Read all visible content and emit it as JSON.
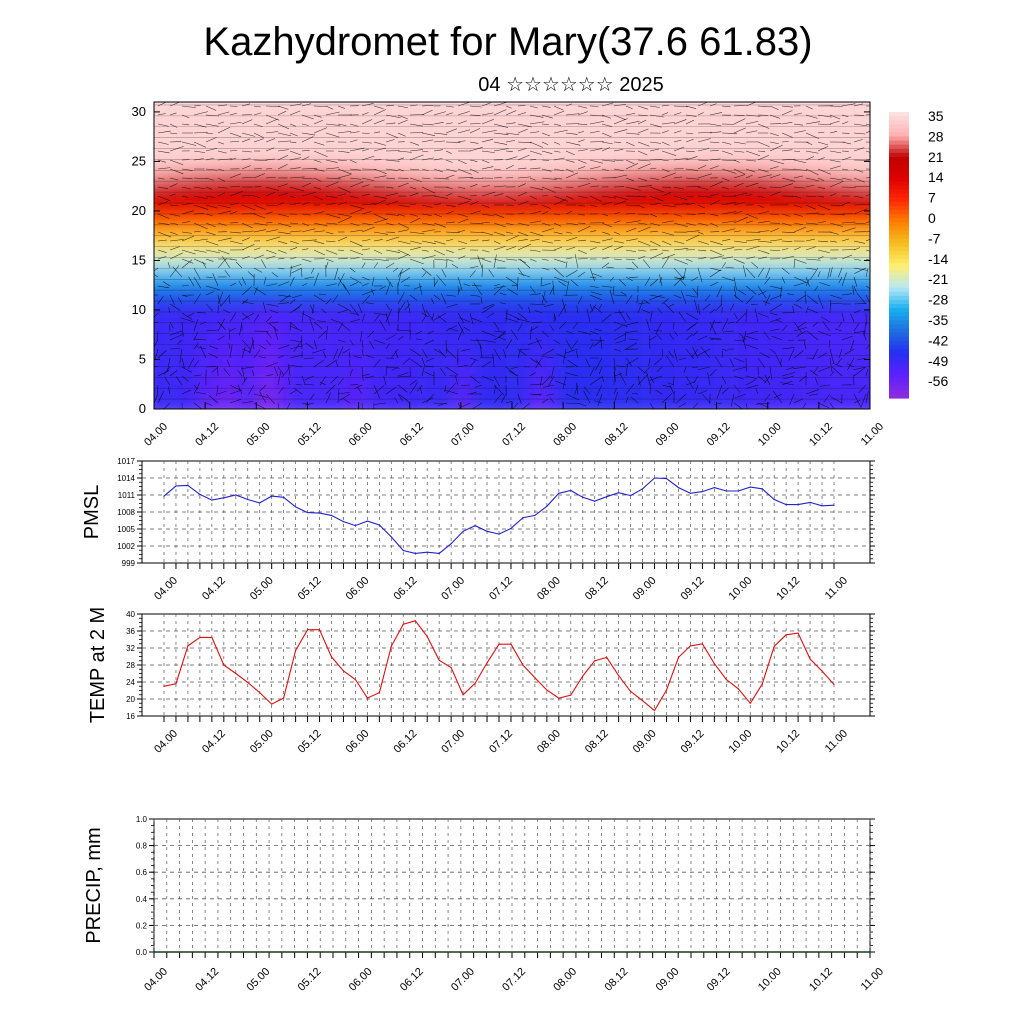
{
  "header": {
    "title": "Kazhydromet for Mary(37.6 61.83)",
    "subtitle": "04 ☆☆☆☆☆☆ 2025"
  },
  "colors": {
    "pmsl_line": "#2222cc",
    "temp_line": "#dd1111",
    "precip_line": "#1a3a1a",
    "colormap": [
      "#8a2be2",
      "#5a20ff",
      "#2430f0",
      "#1e6fe0",
      "#18b0f0",
      "#b8e8f5",
      "#ffef70",
      "#f5c020",
      "#ff8000",
      "#ff2a00",
      "#e00000",
      "#c00000",
      "#ffb0b0",
      "#fde0e0"
    ]
  },
  "chart_data": [
    {
      "type": "heatmap",
      "name": "vertical cross-section",
      "x_tick_labels": [
        "04.00",
        "04.12",
        "05.00",
        "05.12",
        "06.00",
        "06.12",
        "07.00",
        "07.12",
        "08.00",
        "08.12",
        "09.00",
        "09.12",
        "10.00",
        "10.12",
        "11.00"
      ],
      "y_tick_labels": [
        "0",
        "5",
        "10",
        "15",
        "20",
        "25",
        "30"
      ],
      "ylim": [
        0,
        31
      ],
      "colorbar_labels": [
        "35",
        "28",
        "21",
        "14",
        "7",
        "0",
        "-7",
        "-14",
        "-21",
        "-28",
        "-35",
        "-42",
        "-49",
        "-56"
      ],
      "colorbar_range": [
        -60,
        38
      ],
      "overlay": "wind vectors"
    },
    {
      "type": "line",
      "ylabel": "PMSL",
      "x_tick_labels": [
        "04.00",
        "04.12",
        "05.00",
        "05.12",
        "06.00",
        "06.12",
        "07.00",
        "07.12",
        "08.00",
        "08.12",
        "09.00",
        "09.12",
        "10.00",
        "10.12",
        "11.00"
      ],
      "y_tick_labels": [
        "1017",
        "1014",
        "1011",
        "1008",
        "1005",
        "1002",
        "999"
      ],
      "ylim": [
        999,
        1017
      ],
      "x_hours": [
        0,
        3,
        6,
        9,
        12,
        15,
        18,
        21,
        24,
        27,
        30,
        33,
        36,
        39,
        42,
        45,
        48,
        51,
        54,
        57,
        60,
        63,
        66,
        69,
        72,
        75,
        78,
        81,
        84,
        87,
        90,
        93,
        96,
        99,
        102,
        105,
        108,
        111,
        114,
        117,
        120,
        123,
        126,
        129,
        132,
        135,
        138,
        141,
        144,
        147,
        150,
        153,
        156,
        159,
        162,
        165,
        168
      ],
      "values": [
        1010.8,
        1012.6,
        1012.7,
        1011.1,
        1010.1,
        1010.5,
        1011.0,
        1010.2,
        1009.6,
        1010.8,
        1010.6,
        1008.9,
        1007.9,
        1007.8,
        1007.4,
        1006.3,
        1005.6,
        1006.4,
        1005.7,
        1003.6,
        1001.2,
        1000.7,
        1000.9,
        1000.7,
        1002.4,
        1004.6,
        1005.6,
        1004.6,
        1004.1,
        1005.1,
        1007.0,
        1007.4,
        1009.0,
        1011.3,
        1011.8,
        1010.6,
        1009.9,
        1010.7,
        1011.4,
        1010.9,
        1012.1,
        1014.0,
        1013.9,
        1012.3,
        1011.3,
        1011.6,
        1012.3,
        1011.7,
        1011.7,
        1012.4,
        1012.1,
        1010.2,
        1009.3,
        1009.3,
        1009.7,
        1009.1,
        1009.2
      ]
    },
    {
      "type": "line",
      "ylabel": "TEMP at 2 M",
      "x_tick_labels": [
        "04.00",
        "04.12",
        "05.00",
        "05.12",
        "06.00",
        "06.12",
        "07.00",
        "07.12",
        "08.00",
        "08.12",
        "09.00",
        "09.12",
        "10.00",
        "10.12",
        "11.00"
      ],
      "y_tick_labels": [
        "40",
        "36",
        "32",
        "28",
        "24",
        "20",
        "16"
      ],
      "ylim": [
        16,
        40
      ],
      "x_hours": [
        0,
        3,
        6,
        9,
        12,
        15,
        18,
        21,
        24,
        27,
        30,
        33,
        36,
        39,
        42,
        45,
        48,
        51,
        54,
        57,
        60,
        63,
        66,
        69,
        72,
        75,
        78,
        81,
        84,
        87,
        90,
        93,
        96,
        99,
        102,
        105,
        108,
        111,
        114,
        117,
        120,
        123,
        126,
        129,
        132,
        135,
        138,
        141,
        144,
        147,
        150,
        153,
        156,
        159,
        162,
        165,
        168
      ],
      "values": [
        23.0,
        23.6,
        32.5,
        34.5,
        34.5,
        28.0,
        26.0,
        23.9,
        21.5,
        18.8,
        20.2,
        31.4,
        36.3,
        36.3,
        29.9,
        26.6,
        24.6,
        20.2,
        21.5,
        32.4,
        37.6,
        38.4,
        34.7,
        29.1,
        27.4,
        21.0,
        23.7,
        28.5,
        32.9,
        32.9,
        28.0,
        25.0,
        22.1,
        20.2,
        20.9,
        25.4,
        29.0,
        29.8,
        25.5,
        21.8,
        19.6,
        17.3,
        22.1,
        29.8,
        32.5,
        33.0,
        28.3,
        24.6,
        22.4,
        19.0,
        23.5,
        32.4,
        35.1,
        35.5,
        29.4,
        26.6,
        23.4
      ]
    },
    {
      "type": "line",
      "ylabel": "PRECIP, mm",
      "x_tick_labels": [
        "04.00",
        "04.12",
        "05.00",
        "05.12",
        "06.00",
        "06.12",
        "07.00",
        "07.12",
        "08.00",
        "08.12",
        "09.00",
        "09.12",
        "10.00",
        "10.12",
        "11.00"
      ],
      "y_tick_labels": [
        "1.0",
        "0.8",
        "0.6",
        "0.4",
        "0.2",
        "0.0"
      ],
      "ylim": [
        0,
        1
      ],
      "x_hours": [
        0,
        168
      ],
      "values": [
        0,
        0
      ]
    }
  ]
}
